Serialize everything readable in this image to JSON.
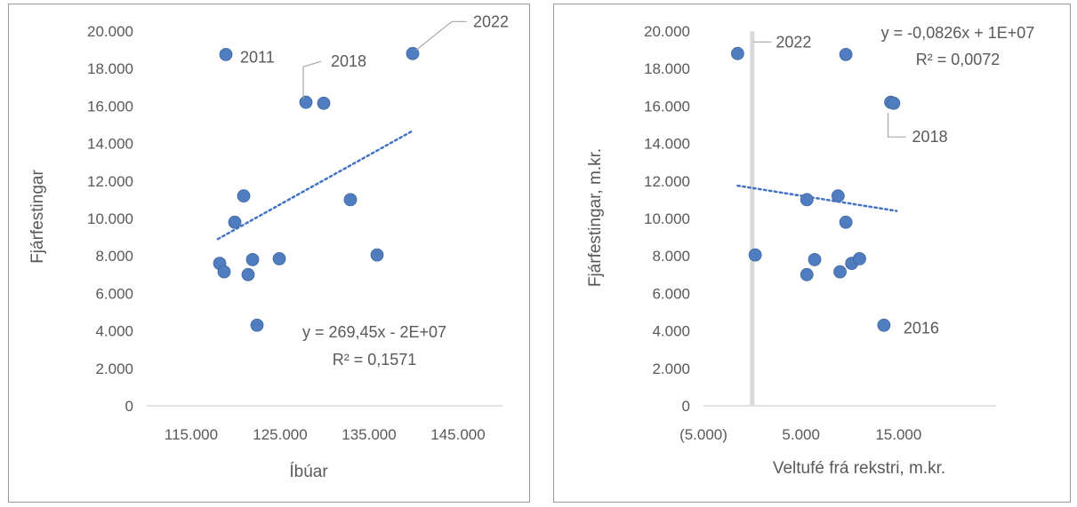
{
  "chart_data": [
    {
      "type": "scatter",
      "xlabel": "Íbúar",
      "ylabel": "Fjárfestingar",
      "xlim": [
        110000,
        150000
      ],
      "ylim": [
        0,
        20000
      ],
      "x_ticks": [
        "115.000",
        "125.000",
        "135.000",
        "145.000"
      ],
      "y_ticks": [
        "0",
        "2.000",
        "4.000",
        "6.000",
        "8.000",
        "10.000",
        "12.000",
        "14.000",
        "16.000",
        "18.000",
        "20.000"
      ],
      "points": [
        {
          "x": 118200,
          "y": 7600
        },
        {
          "x": 118700,
          "y": 7150
        },
        {
          "x": 118900,
          "y": 18750,
          "label": "2011"
        },
        {
          "x": 119900,
          "y": 9800
        },
        {
          "x": 120900,
          "y": 11200
        },
        {
          "x": 121400,
          "y": 7000
        },
        {
          "x": 121900,
          "y": 7800
        },
        {
          "x": 122400,
          "y": 4300
        },
        {
          "x": 124900,
          "y": 7850
        },
        {
          "x": 127900,
          "y": 16200,
          "label": "2018"
        },
        {
          "x": 129900,
          "y": 16150
        },
        {
          "x": 132900,
          "y": 11000
        },
        {
          "x": 135900,
          "y": 8050
        },
        {
          "x": 139900,
          "y": 18800,
          "label": "2022"
        }
      ],
      "trendline": {
        "x": [
          118000,
          139800
        ],
        "y": [
          8900,
          14650
        ]
      },
      "equation": "y = 269,45x - 2E+07",
      "r_squared": "R² = 0,1571"
    },
    {
      "type": "scatter",
      "xlabel": "Veltufé frá rekstri, m.kr.",
      "ylabel": "Fjárfestingar, m.kr.",
      "xlim": [
        -5000,
        25000
      ],
      "ylim": [
        0,
        20000
      ],
      "x_ticks": [
        "(5.000)",
        "5.000",
        "15.000"
      ],
      "y_ticks": [
        "0",
        "2.000",
        "4.000",
        "6.000",
        "8.000",
        "10.000",
        "12.000",
        "14.000",
        "16.000",
        "18.000",
        "20.000"
      ],
      "points": [
        {
          "x": -1500,
          "y": 18800,
          "label": "2022"
        },
        {
          "x": 300,
          "y": 8050
        },
        {
          "x": 5600,
          "y": 11000
        },
        {
          "x": 5600,
          "y": 7000
        },
        {
          "x": 6400,
          "y": 7800
        },
        {
          "x": 8800,
          "y": 11200
        },
        {
          "x": 9000,
          "y": 7150
        },
        {
          "x": 9600,
          "y": 9800
        },
        {
          "x": 9600,
          "y": 18750
        },
        {
          "x": 10200,
          "y": 7600
        },
        {
          "x": 11000,
          "y": 7850
        },
        {
          "x": 13500,
          "y": 4300,
          "label": "2016"
        },
        {
          "x": 14200,
          "y": 16200,
          "label": "2018"
        },
        {
          "x": 14500,
          "y": 16150
        }
      ],
      "trendline": {
        "x": [
          -1500,
          14800
        ],
        "y": [
          11750,
          10400
        ]
      },
      "equation": "y = -0,0826x + 1E+07",
      "r_squared": "R² = 0,0072"
    }
  ]
}
